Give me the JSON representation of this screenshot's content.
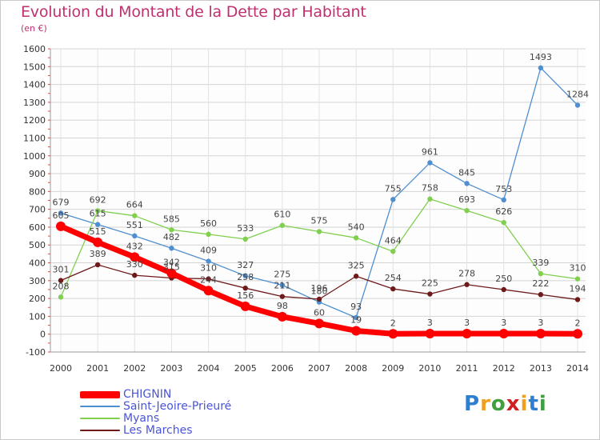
{
  "header": {
    "title": "Evolution du Montant de la Dette par Habitant",
    "unit": "(en €)"
  },
  "chart_data": {
    "type": "line",
    "title": "Evolution du Montant de la Dette par Habitant",
    "subtitle": "(en €)",
    "xlabel": "",
    "ylabel": "",
    "x": [
      "2000",
      "2001",
      "2002",
      "2003",
      "2004",
      "2005",
      "2006",
      "2007",
      "2008",
      "2009",
      "2010",
      "2011",
      "2012",
      "2013",
      "2014"
    ],
    "ylim": [
      -100,
      1600
    ],
    "yticks": [
      -100,
      0,
      100,
      200,
      300,
      400,
      500,
      600,
      700,
      800,
      900,
      1000,
      1100,
      1200,
      1300,
      1400,
      1500,
      1600
    ],
    "grid": true,
    "legend_position": "bottom-left",
    "series": [
      {
        "name": "Saint-Jeoire-Prieuré",
        "color": "#4f8fcf",
        "values": [
          679,
          615,
          551,
          482,
          409,
          327,
          275,
          180,
          93,
          755,
          961,
          845,
          753,
          1493,
          1284
        ]
      },
      {
        "name": "Myans",
        "color": "#80cf4f",
        "values": [
          208,
          692,
          664,
          585,
          560,
          533,
          610,
          575,
          540,
          464,
          758,
          693,
          626,
          339,
          310
        ]
      },
      {
        "name": "Les Marches",
        "color": "#6e1a1a",
        "values": [
          301,
          389,
          330,
          315,
          310,
          258,
          211,
          196,
          325,
          254,
          225,
          278,
          250,
          222,
          194
        ]
      },
      {
        "name": "CHIGNIN",
        "color": "#ff0000",
        "values": [
          605,
          515,
          432,
          342,
          244,
          156,
          98,
          60,
          19,
          2,
          3,
          3,
          3,
          3,
          2
        ]
      }
    ]
  },
  "legend": [
    {
      "label": "CHIGNIN",
      "color": "#ff0000"
    },
    {
      "label": "Saint-Jeoire-Prieuré",
      "color": "#4f8fcf"
    },
    {
      "label": "Myans",
      "color": "#80cf4f"
    },
    {
      "label": "Les Marches",
      "color": "#6e1a1a"
    }
  ],
  "logo": {
    "letters": [
      "P",
      "r",
      "o",
      "x",
      "i",
      "t",
      "i"
    ],
    "colors": [
      "#2f7fd0",
      "#f0a020",
      "#40a040",
      "#d02020",
      "#f0a020",
      "#2f7fd0",
      "#40a040"
    ]
  }
}
